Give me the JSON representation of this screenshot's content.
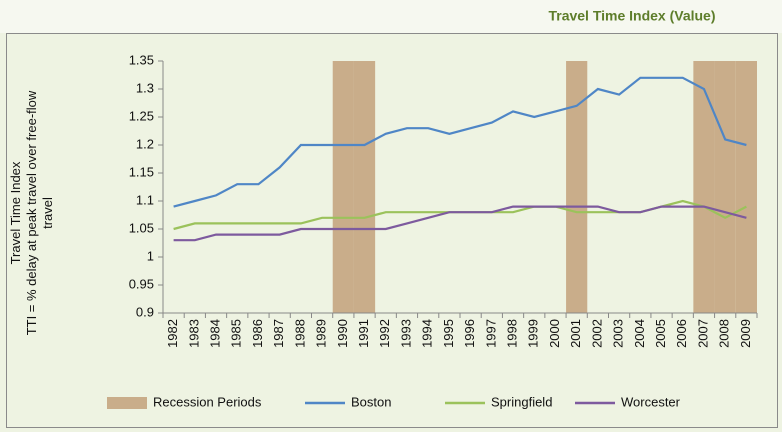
{
  "chart_data": {
    "type": "line",
    "title": "Travel Time Index (Value)",
    "y_label": [
      "Travel Time Index",
      "TTI = % delay at peak travel over free-flow travel"
    ],
    "categories": [
      "1982",
      "1983",
      "1984",
      "1985",
      "1986",
      "1987",
      "1988",
      "1989",
      "1990",
      "1991",
      "1992",
      "1993",
      "1994",
      "1995",
      "1996",
      "1997",
      "1998",
      "1999",
      "2000",
      "2001",
      "2002",
      "2003",
      "2004",
      "2005",
      "2006",
      "2007",
      "2008",
      "2009"
    ],
    "series": [
      {
        "name": "Recession Periods",
        "type": "bar",
        "color": "#c9ad8a",
        "values": [
          null,
          null,
          null,
          null,
          null,
          null,
          null,
          null,
          1.35,
          1.35,
          null,
          null,
          null,
          null,
          null,
          null,
          null,
          null,
          null,
          1.35,
          null,
          null,
          null,
          null,
          null,
          1.35,
          1.35,
          1.35
        ]
      },
      {
        "name": "Boston",
        "type": "line",
        "color": "#4f86c6",
        "values": [
          1.09,
          1.1,
          1.11,
          1.13,
          1.13,
          1.16,
          1.2,
          1.2,
          1.2,
          1.2,
          1.22,
          1.23,
          1.23,
          1.22,
          1.23,
          1.24,
          1.26,
          1.25,
          1.26,
          1.27,
          1.3,
          1.29,
          1.32,
          1.32,
          1.32,
          1.3,
          1.21,
          1.2
        ]
      },
      {
        "name": "Springfield",
        "type": "line",
        "color": "#9bc25b",
        "values": [
          1.05,
          1.06,
          1.06,
          1.06,
          1.06,
          1.06,
          1.06,
          1.07,
          1.07,
          1.07,
          1.08,
          1.08,
          1.08,
          1.08,
          1.08,
          1.08,
          1.08,
          1.09,
          1.09,
          1.08,
          1.08,
          1.08,
          1.08,
          1.09,
          1.1,
          1.09,
          1.07,
          1.09
        ]
      },
      {
        "name": "Worcester",
        "type": "line",
        "color": "#7d5a9e",
        "values": [
          1.03,
          1.03,
          1.04,
          1.04,
          1.04,
          1.04,
          1.05,
          1.05,
          1.05,
          1.05,
          1.05,
          1.06,
          1.07,
          1.08,
          1.08,
          1.08,
          1.09,
          1.09,
          1.09,
          1.09,
          1.09,
          1.08,
          1.08,
          1.09,
          1.09,
          1.09,
          1.08,
          1.07
        ]
      }
    ],
    "ylim": [
      0.9,
      1.35
    ],
    "yticks": [
      0.9,
      0.95,
      1,
      1.05,
      1.1,
      1.15,
      1.2,
      1.25,
      1.3,
      1.35
    ],
    "grid": false,
    "legend": "bottom"
  }
}
